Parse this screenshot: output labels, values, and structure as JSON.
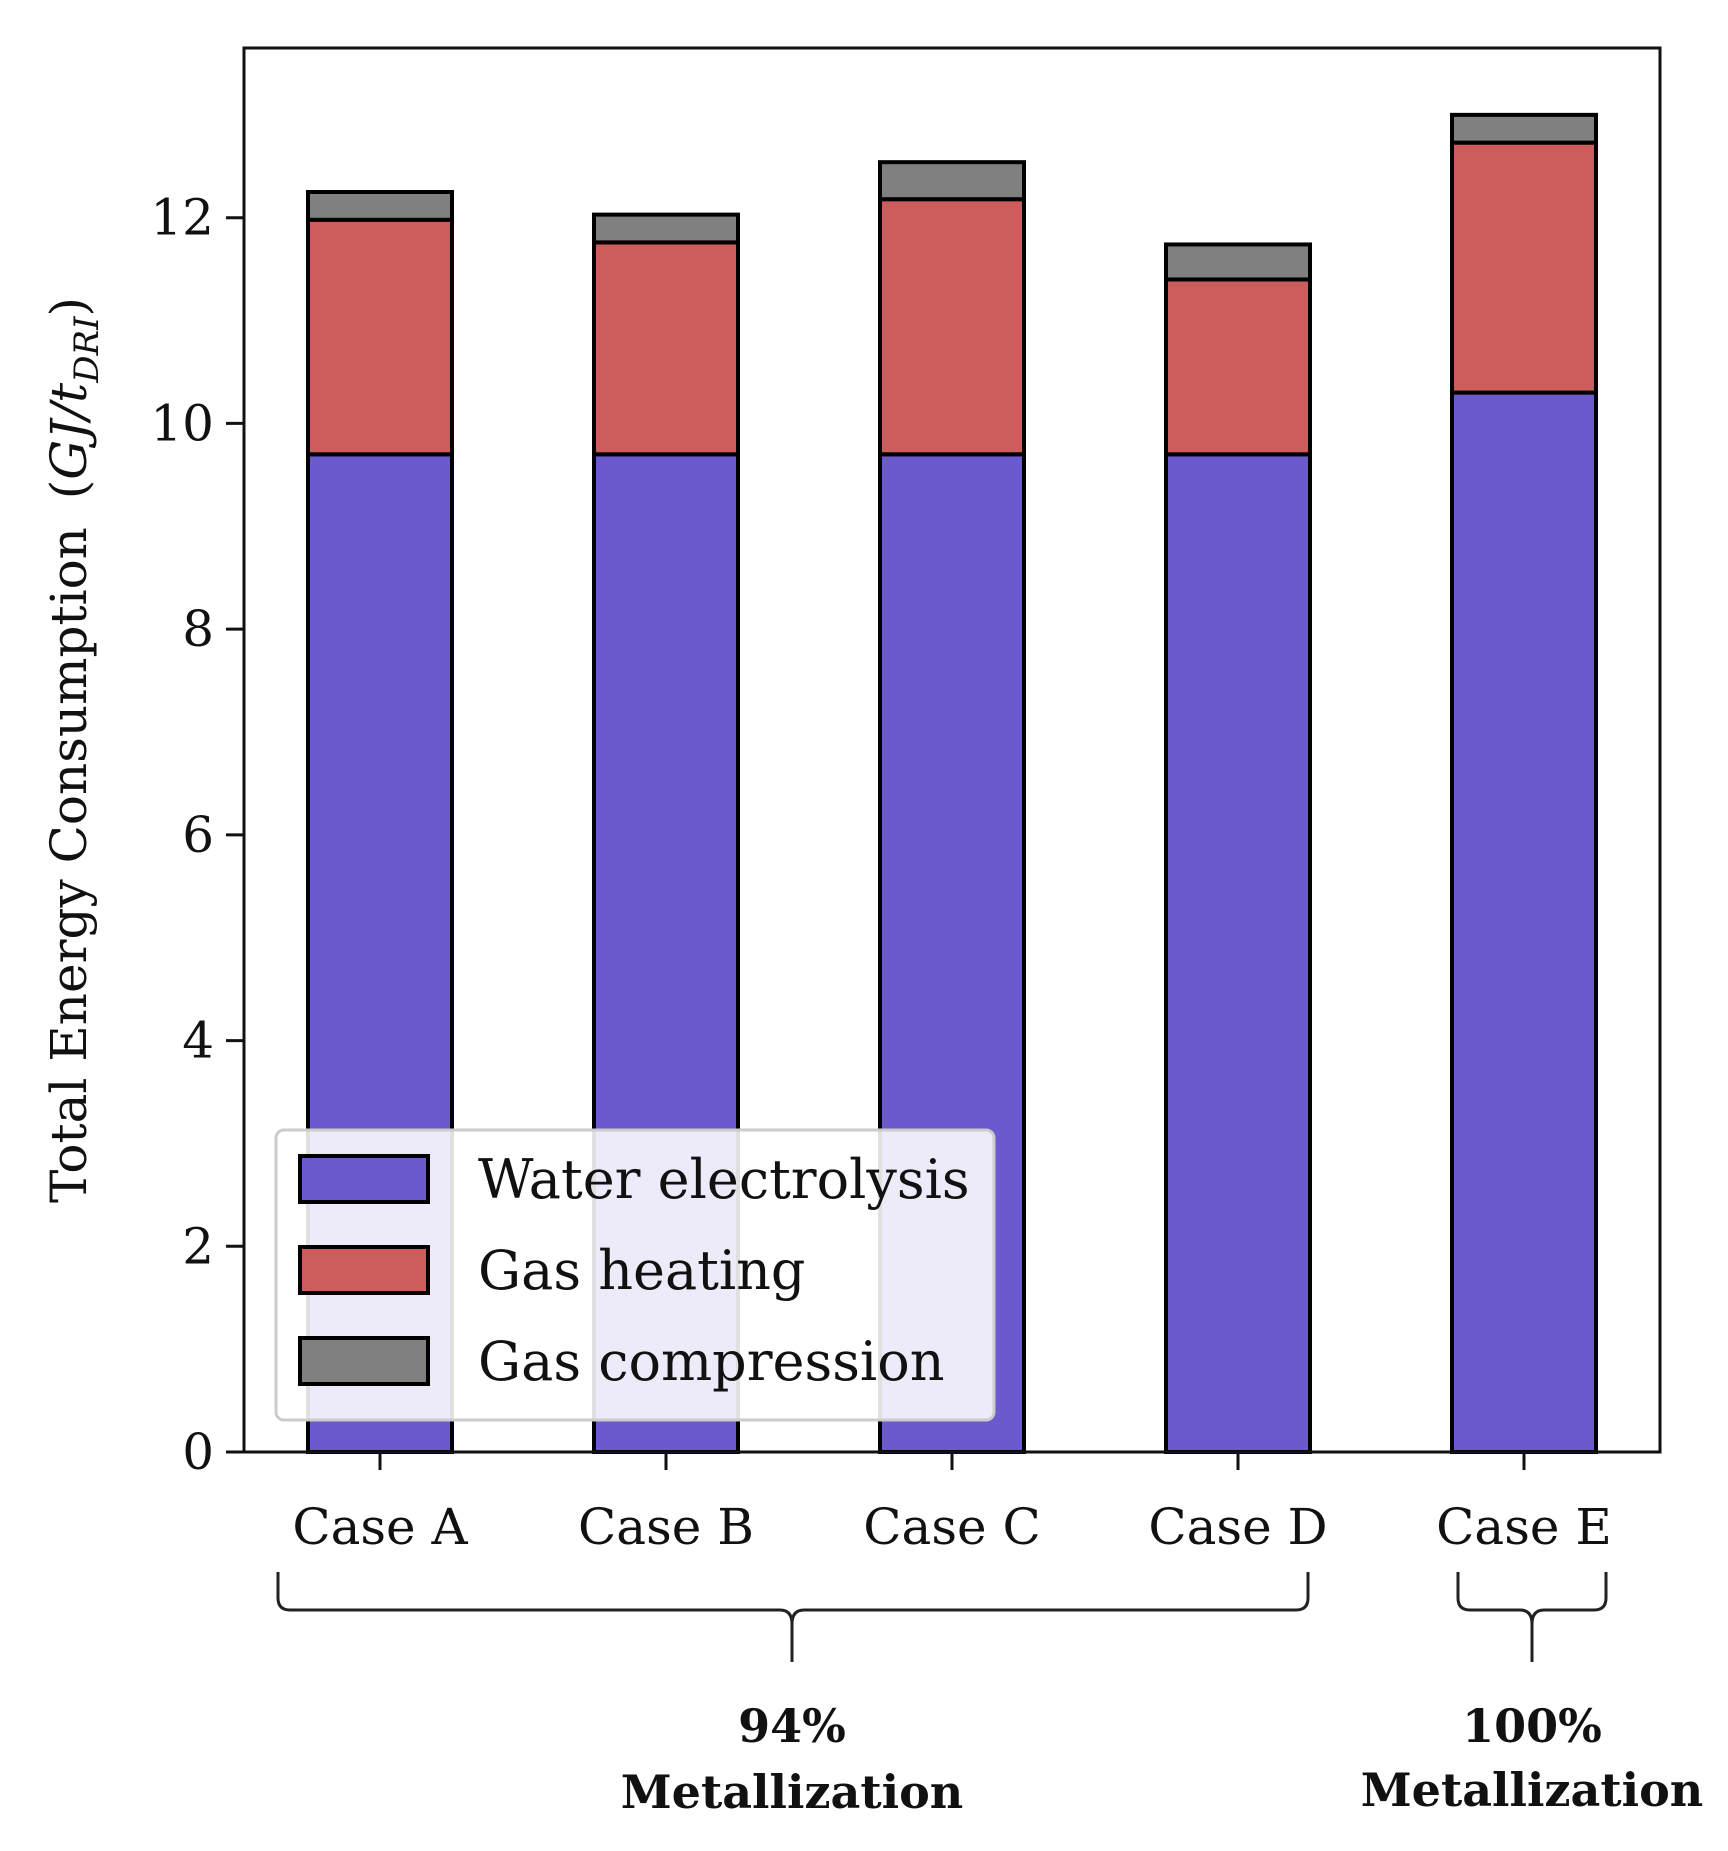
{
  "chart_data": {
    "type": "bar",
    "stacked": true,
    "categories": [
      "Case A",
      "Case B",
      "Case C",
      "Case D",
      "Case E"
    ],
    "series": [
      {
        "name": "Water electrolysis",
        "color": "#6a5acd",
        "values": [
          9.7,
          9.7,
          9.7,
          9.7,
          10.3
        ]
      },
      {
        "name": "Gas heating",
        "color": "#cd5c5c",
        "values": [
          2.28,
          2.06,
          2.48,
          1.7,
          2.43
        ]
      },
      {
        "name": "Gas compression",
        "color": "#808080",
        "values": [
          0.27,
          0.27,
          0.36,
          0.34,
          0.27
        ]
      }
    ],
    "ylabel": "Total Energy Consumption",
    "ylabel_unit": {
      "open": "(",
      "main": "GJ/t",
      "subscript": "DRI",
      "close": ")"
    },
    "ylim": [
      0,
      13.65
    ],
    "yticks": [
      0,
      2,
      4,
      6,
      8,
      10,
      12
    ],
    "legend_position": "lower-left",
    "groups": [
      {
        "categories": [
          "Case A",
          "Case B",
          "Case C",
          "Case D"
        ],
        "line1": "94%",
        "line2": "Metallization"
      },
      {
        "categories": [
          "Case E"
        ],
        "line1": "100%",
        "line2": "Metallization"
      }
    ]
  }
}
